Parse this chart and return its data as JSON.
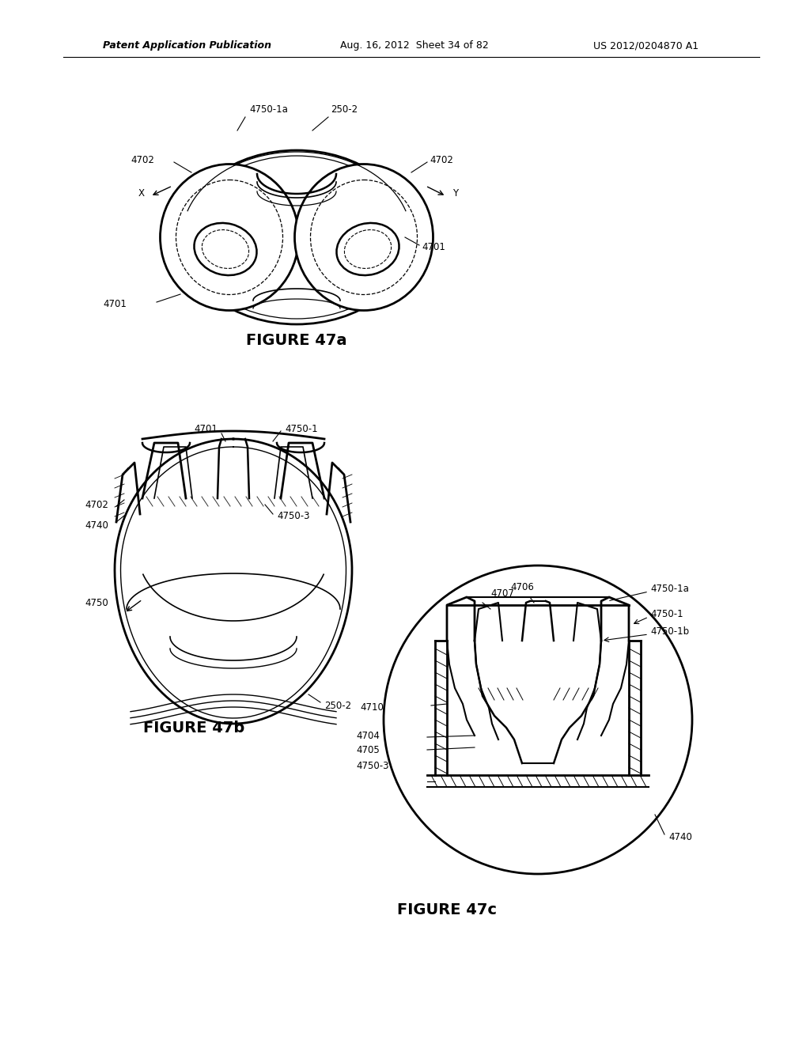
{
  "header_left": "Patent Application Publication",
  "header_mid": "Aug. 16, 2012  Sheet 34 of 82",
  "header_right": "US 2012/0204870 A1",
  "fig47a_caption": "FIGURE 47a",
  "fig47b_caption": "FIGURE 47b",
  "fig47c_caption": "FIGURE 47c",
  "bg_color": "#ffffff",
  "line_color": "#000000",
  "label_fontsize": 8.5,
  "caption_fontsize": 14,
  "header_fontsize": 9
}
